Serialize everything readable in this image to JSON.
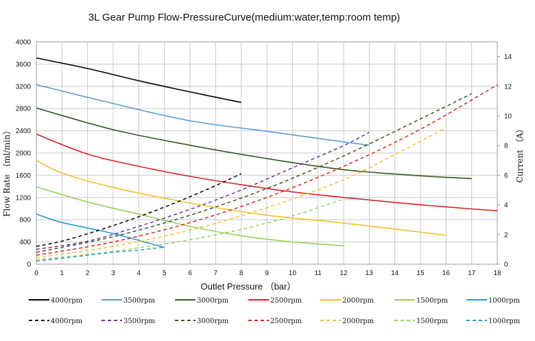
{
  "chart_data": {
    "type": "line",
    "title": "3L Gear Pump Flow-PressureCurve(medium:water,temp:room temp)",
    "xlabel": "Outlet Pressure  （bar）",
    "ylabel_left": "Flow Rate  （ml/min）",
    "ylabel_right": "Current  （A）",
    "xlim": [
      0,
      18
    ],
    "ylim_left": [
      0,
      4000
    ],
    "ylim_right": [
      0,
      15
    ],
    "x_ticks": [
      "0",
      "1",
      "2",
      "3",
      "4",
      "5",
      "6",
      "7",
      "8",
      "9",
      "10",
      "11",
      "12",
      "13",
      "14",
      "15",
      "16",
      "17",
      "18"
    ],
    "y_left_ticks": [
      "0",
      "400",
      "800",
      "1200",
      "1600",
      "2000",
      "2400",
      "2800",
      "3200",
      "3600",
      "4000"
    ],
    "y_right_ticks": [
      "0",
      "2",
      "4",
      "6",
      "8",
      "10",
      "12",
      "14"
    ],
    "grid": true,
    "legend_position": "bottom",
    "series": [
      {
        "name": "4000rpm",
        "axis": "left",
        "style": "solid",
        "color": "#000000",
        "x": [
          0,
          2,
          4,
          6,
          8
        ],
        "y": [
          3710,
          3520,
          3300,
          3100,
          2910
        ]
      },
      {
        "name": "3500rpm",
        "axis": "left",
        "style": "solid",
        "color": "#5b9bd5",
        "x": [
          0,
          3,
          6,
          9,
          12,
          13
        ],
        "y": [
          3230,
          2890,
          2580,
          2390,
          2200,
          2140
        ]
      },
      {
        "name": "3000rpm",
        "axis": "left",
        "style": "solid",
        "color": "#375623",
        "x": [
          0,
          3,
          6,
          9,
          12,
          15,
          17
        ],
        "y": [
          2810,
          2420,
          2140,
          1900,
          1700,
          1590,
          1540
        ]
      },
      {
        "name": "2500rpm",
        "axis": "left",
        "style": "solid",
        "color": "#e02020",
        "x": [
          0,
          2,
          4,
          6,
          8,
          10,
          12,
          14,
          16,
          18
        ],
        "y": [
          2340,
          1980,
          1760,
          1580,
          1430,
          1300,
          1200,
          1110,
          1030,
          960
        ]
      },
      {
        "name": "2000rpm",
        "axis": "left",
        "style": "solid",
        "color": "#f5c025",
        "x": [
          0,
          1,
          3,
          6,
          9,
          12,
          16
        ],
        "y": [
          1870,
          1640,
          1380,
          1100,
          880,
          740,
          520
        ]
      },
      {
        "name": "1500rpm",
        "axis": "left",
        "style": "solid",
        "color": "#9bcf5a",
        "x": [
          0,
          2,
          4,
          6,
          8,
          10,
          12
        ],
        "y": [
          1390,
          1120,
          900,
          680,
          510,
          400,
          330
        ]
      },
      {
        "name": "1000rpm",
        "axis": "left",
        "style": "solid",
        "color": "#1f9bd0",
        "x": [
          0,
          1,
          3,
          5
        ],
        "y": [
          900,
          750,
          550,
          300
        ]
      },
      {
        "name": "4000rpm",
        "axis": "right",
        "style": "dashed",
        "color": "#000000",
        "x": [
          0,
          1,
          2,
          3,
          4,
          5,
          6,
          7,
          8
        ],
        "y": [
          1.2,
          1.55,
          2.05,
          2.6,
          3.2,
          3.85,
          4.55,
          5.3,
          6.1
        ]
      },
      {
        "name": "3500rpm",
        "axis": "right",
        "style": "dashed",
        "color": "#7030a0",
        "x": [
          0,
          2,
          4,
          6,
          8,
          10,
          12,
          13
        ],
        "y": [
          1.0,
          1.55,
          2.55,
          3.7,
          5.0,
          6.5,
          8.0,
          8.9
        ]
      },
      {
        "name": "3000rpm",
        "axis": "right",
        "style": "dashed",
        "color": "#375623",
        "x": [
          0,
          3,
          6,
          9,
          12,
          15,
          17
        ],
        "y": [
          0.8,
          1.85,
          3.3,
          5.1,
          7.3,
          9.8,
          11.5
        ]
      },
      {
        "name": "2500rpm",
        "axis": "right",
        "style": "dashed",
        "color": "#e02020",
        "x": [
          0,
          3,
          6,
          9,
          12,
          15,
          18
        ],
        "y": [
          0.6,
          1.5,
          2.8,
          4.5,
          6.6,
          9.1,
          12.1
        ]
      },
      {
        "name": "2000rpm",
        "axis": "right",
        "style": "dashed",
        "color": "#f5c025",
        "x": [
          0,
          3,
          6,
          9,
          12,
          14,
          16
        ],
        "y": [
          0.45,
          1.2,
          2.3,
          3.8,
          5.7,
          7.4,
          9.2
        ]
      },
      {
        "name": "1500rpm",
        "axis": "right",
        "style": "dashed",
        "color": "#9bcf5a",
        "x": [
          0,
          2,
          4,
          6,
          8,
          10,
          12
        ],
        "y": [
          0.3,
          0.65,
          1.1,
          1.65,
          2.35,
          3.25,
          4.4
        ]
      },
      {
        "name": "1000rpm",
        "axis": "right",
        "style": "dashed",
        "color": "#1f9bd0",
        "x": [
          0,
          1,
          2,
          3,
          4,
          5
        ],
        "y": [
          0.2,
          0.4,
          0.6,
          0.8,
          0.95,
          1.15
        ]
      }
    ]
  }
}
